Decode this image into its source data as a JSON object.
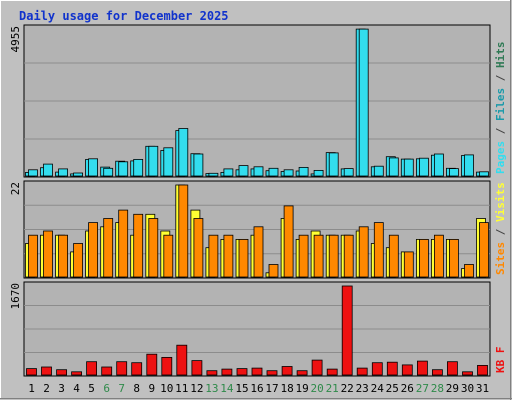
{
  "colors": {
    "background": "#c0c0c0",
    "panel": "#b3b3b3",
    "pages": "#33ddee",
    "files": "#1a9aaa",
    "hits": "#2f7a55",
    "visits": "#ffff33",
    "sites": "#ff8800",
    "kb": "#ee1111",
    "title": "#1133cc",
    "weekend_day": "#2f8a4a"
  },
  "chart_data": {
    "type": "bar",
    "title": "Daily usage for December 2025",
    "categories": [
      "1",
      "2",
      "3",
      "4",
      "5",
      "6",
      "7",
      "8",
      "9",
      "10",
      "11",
      "12",
      "13",
      "14",
      "15",
      "16",
      "17",
      "18",
      "19",
      "20",
      "21",
      "22",
      "23",
      "24",
      "25",
      "26",
      "27",
      "28",
      "29",
      "30",
      "31"
    ],
    "weekend_days": [
      "6",
      "7",
      "13",
      "14",
      "20",
      "21",
      "27",
      "28"
    ],
    "panels": [
      {
        "name": "top",
        "max_label": "4955",
        "ymax": 4955,
        "legend": [
          {
            "text": "Pages",
            "color_key": "pages"
          },
          {
            "text": " / ",
            "color_key": "sep"
          },
          {
            "text": "Files",
            "color_key": "files"
          },
          {
            "text": " / ",
            "color_key": "sep"
          },
          {
            "text": "Hits",
            "color_key": "hits"
          }
        ],
        "series": [
          {
            "name": "Pages",
            "color_key": "pages",
            "values": [
              120,
              280,
              130,
              70,
              560,
              300,
              500,
              510,
              1000,
              860,
              1530,
              750,
              80,
              120,
              210,
              240,
              180,
              150,
              170,
              70,
              790,
              240,
              4950,
              310,
              650,
              570,
              580,
              700,
              260,
              690,
              130
            ]
          },
          {
            "name": "Files",
            "color_key": "pages",
            "values": [
              210,
              400,
              240,
              100,
              580,
              260,
              480,
              560,
              1000,
              950,
              1600,
              740,
              90,
              240,
              350,
              310,
              260,
              210,
              290,
              190,
              780,
              250,
              4950,
              330,
              610,
              570,
              600,
              740,
              250,
              710,
              140
            ]
          }
        ]
      },
      {
        "name": "middle",
        "max_label": "22",
        "ymax": 22,
        "legend": [
          {
            "text": "Sites",
            "color_key": "sites"
          },
          {
            "text": " / ",
            "color_key": "sep"
          },
          {
            "text": "Visits",
            "color_key": "visits"
          }
        ],
        "series": [
          {
            "name": "Visits",
            "color_key": "visits",
            "values": [
              8,
              10,
              10,
              6,
              11,
              12,
              13,
              10,
              15,
              11,
              22,
              16,
              7,
              9,
              9,
              10,
              1,
              14,
              9,
              11,
              10,
              10,
              11,
              8,
              7,
              6,
              9,
              9,
              9,
              2,
              14
            ]
          },
          {
            "name": "Sites",
            "color_key": "sites",
            "values": [
              10,
              11,
              10,
              8,
              13,
              14,
              16,
              15,
              14,
              10,
              22,
              14,
              10,
              10,
              9,
              12,
              3,
              17,
              10,
              10,
              10,
              10,
              12,
              13,
              10,
              6,
              9,
              10,
              9,
              3,
              13
            ]
          }
        ]
      },
      {
        "name": "bottom",
        "max_label": "1670",
        "ymax": 1670,
        "legend": [
          {
            "text": "KB F",
            "color_key": "kb"
          }
        ],
        "series": [
          {
            "name": "KB F",
            "color_key": "kb",
            "values": [
              120,
              150,
              100,
              60,
              250,
              150,
              250,
              230,
              390,
              330,
              560,
              270,
              80,
              110,
              120,
              130,
              80,
              160,
              80,
              280,
              110,
              1670,
              130,
              230,
              240,
              190,
              260,
              100,
              250,
              60,
              180
            ]
          }
        ]
      }
    ]
  }
}
